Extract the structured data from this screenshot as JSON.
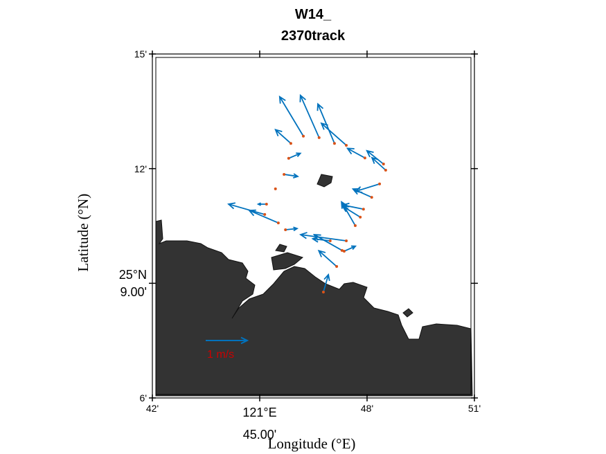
{
  "chart_data": {
    "type": "quiver",
    "title": "W14_\n2370track",
    "xlabel": "Longitude (°E)",
    "ylabel": "Latitude (°N)",
    "xlim": [
      42,
      51
    ],
    "ylim": [
      6,
      15
    ],
    "xticks": [
      {
        "value": 42,
        "label": "42'"
      },
      {
        "value": 45,
        "label": "121°E\n45.00'"
      },
      {
        "value": 48,
        "label": "48'"
      },
      {
        "value": 51,
        "label": "51'"
      }
    ],
    "yticks": [
      {
        "value": 6,
        "label": "6'"
      },
      {
        "value": 9,
        "label": "25°N\n9.00'"
      },
      {
        "value": 12,
        "label": "12'"
      },
      {
        "value": 15,
        "label": "15'"
      }
    ],
    "color": "#0072bd",
    "point_color": "#d95319",
    "scale_arrow": {
      "label": "1 m/s",
      "value": 1,
      "color": "#cc0000"
    },
    "x": [
      46.22,
      46.66,
      47.09,
      45.87,
      47.42,
      47.94,
      48.46,
      48.52,
      45.81,
      45.68,
      45.44,
      48.35,
      48.13,
      45.19,
      45.14,
      45.52,
      47.67,
      47.81,
      47.9,
      45.72,
      47.42,
      47.3,
      47.15,
      47.36,
      46.78,
      46.97
    ],
    "y": [
      12.85,
      12.81,
      12.66,
      12.66,
      12.61,
      12.28,
      12.12,
      11.96,
      12.27,
      11.85,
      11.47,
      11.6,
      11.25,
      11.07,
      10.8,
      10.58,
      10.51,
      10.73,
      10.94,
      10.4,
      10.11,
      9.86,
      9.44,
      9.84,
      8.77,
      10.11
    ],
    "u": [
      -0.57,
      -0.45,
      -0.4,
      -0.37,
      -0.6,
      -0.42,
      -0.4,
      -0.33,
      0.28,
      0.33,
      0,
      -0.58,
      -0.45,
      -0.2,
      -0.87,
      -0.7,
      -0.33,
      -0.43,
      -0.5,
      0.28,
      -1.1,
      -0.67,
      -0.43,
      0.27,
      0.12,
      -0.42
    ],
    "v": [
      0.95,
      1.02,
      0.95,
      0.33,
      0.53,
      0.23,
      0.32,
      0.3,
      0.12,
      -0.05,
      0,
      -0.18,
      0.2,
      0,
      0.25,
      0.3,
      0.57,
      0.27,
      0.1,
      0.03,
      0.15,
      0.38,
      0.38,
      0.12,
      0.42,
      0.05
    ]
  }
}
